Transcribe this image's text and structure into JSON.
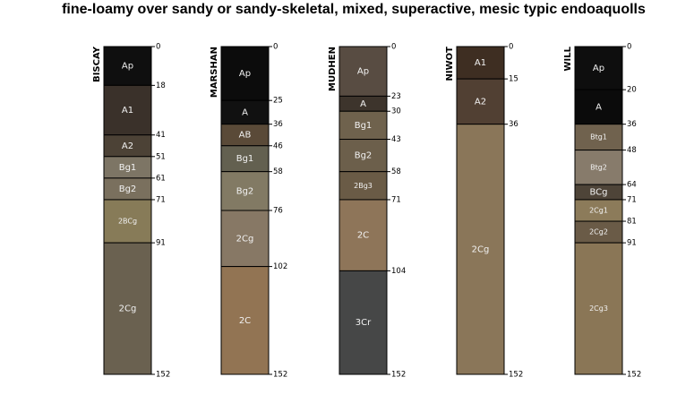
{
  "chart_data": {
    "type": "soil-profile-sketch",
    "title": "fine-loamy over sandy or sandy-skeletal, mixed, superactive, mesic typic endoaquolls",
    "depth_unit": "cm",
    "ylim": [
      0,
      152
    ],
    "profiles": [
      {
        "name": "BISCAY",
        "horizons": [
          {
            "name": "Ap",
            "top": 0,
            "bottom": 18,
            "color": "#0f0f0f"
          },
          {
            "name": "A1",
            "top": 18,
            "bottom": 41,
            "color": "#3a312a"
          },
          {
            "name": "A2",
            "top": 41,
            "bottom": 51,
            "color": "#4c4236"
          },
          {
            "name": "Bg1",
            "top": 51,
            "bottom": 61,
            "color": "#7d7565"
          },
          {
            "name": "Bg2",
            "top": 61,
            "bottom": 71,
            "color": "#7a705e"
          },
          {
            "name": "2BCg",
            "top": 71,
            "bottom": 91,
            "color": "#877b58"
          },
          {
            "name": "2Cg",
            "top": 91,
            "bottom": 152,
            "color": "#6a6150"
          }
        ],
        "depth_labels": [
          "0",
          "18",
          "41",
          "51",
          "61",
          "71",
          "91",
          "152"
        ]
      },
      {
        "name": "MARSHAN",
        "horizons": [
          {
            "name": "Ap",
            "top": 0,
            "bottom": 25,
            "color": "#0c0c0c"
          },
          {
            "name": "A",
            "top": 25,
            "bottom": 36,
            "color": "#111111"
          },
          {
            "name": "AB",
            "top": 36,
            "bottom": 46,
            "color": "#5a4a38"
          },
          {
            "name": "Bg1",
            "top": 46,
            "bottom": 58,
            "color": "#636050"
          },
          {
            "name": "Bg2",
            "top": 58,
            "bottom": 76,
            "color": "#827a64"
          },
          {
            "name": "2Cg",
            "top": 76,
            "bottom": 102,
            "color": "#877865"
          },
          {
            "name": "2C",
            "top": 102,
            "bottom": 152,
            "color": "#927453"
          }
        ],
        "depth_labels": [
          "0",
          "25",
          "36",
          "46",
          "58",
          "76",
          "102",
          "152"
        ]
      },
      {
        "name": "MUDHEN",
        "horizons": [
          {
            "name": "Ap",
            "top": 0,
            "bottom": 23,
            "color": "#584c42"
          },
          {
            "name": "A",
            "top": 23,
            "bottom": 30,
            "color": "#3d342c"
          },
          {
            "name": "Bg1",
            "top": 30,
            "bottom": 43,
            "color": "#6f624d"
          },
          {
            "name": "Bg2",
            "top": 43,
            "bottom": 58,
            "color": "#6c5f4b"
          },
          {
            "name": "2Bg3",
            "top": 58,
            "bottom": 71,
            "color": "#6a5b46"
          },
          {
            "name": "2C",
            "top": 71,
            "bottom": 104,
            "color": "#8e7559"
          },
          {
            "name": "3Cr",
            "top": 104,
            "bottom": 152,
            "color": "#464747"
          }
        ],
        "depth_labels": [
          "0",
          "23",
          "30",
          "43",
          "58",
          "71",
          "104",
          "152"
        ]
      },
      {
        "name": "NIWOT",
        "horizons": [
          {
            "name": "A1",
            "top": 0,
            "bottom": 15,
            "color": "#3e2e22"
          },
          {
            "name": "A2",
            "top": 15,
            "bottom": 36,
            "color": "#514033"
          },
          {
            "name": "2Cg",
            "top": 36,
            "bottom": 152,
            "color": "#8a7659"
          }
        ],
        "depth_labels": [
          "0",
          "15",
          "36",
          "152"
        ]
      },
      {
        "name": "WILL",
        "horizons": [
          {
            "name": "Ap",
            "top": 0,
            "bottom": 20,
            "color": "#0e0e0e"
          },
          {
            "name": "A",
            "top": 20,
            "bottom": 36,
            "color": "#0b0b0b"
          },
          {
            "name": "Btg1",
            "top": 36,
            "bottom": 48,
            "color": "#70624e"
          },
          {
            "name": "Btg2",
            "top": 48,
            "bottom": 64,
            "color": "#877b6b"
          },
          {
            "name": "BCg",
            "top": 64,
            "bottom": 71,
            "color": "#4e4438"
          },
          {
            "name": "2Cg1",
            "top": 71,
            "bottom": 81,
            "color": "#8c7b5a"
          },
          {
            "name": "2Cg2",
            "top": 81,
            "bottom": 91,
            "color": "#6a5b47"
          },
          {
            "name": "2Cg3",
            "top": 91,
            "bottom": 152,
            "color": "#8a7656"
          }
        ],
        "depth_labels": [
          "0",
          "20",
          "36",
          "48",
          "64",
          "71",
          "81",
          "91",
          "152"
        ]
      }
    ]
  }
}
